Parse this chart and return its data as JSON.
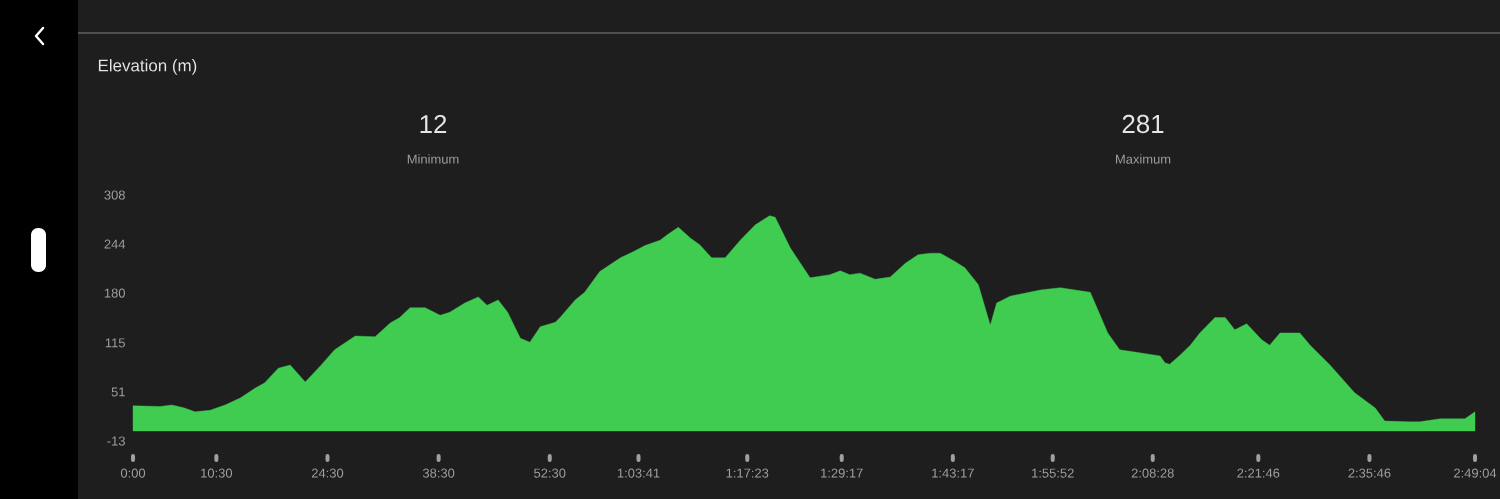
{
  "chart_data": {
    "type": "area",
    "title": "Elevation (m)",
    "annotations": [
      "12",
      "Minimum",
      "281",
      "Maximum"
    ],
    "x": [
      0,
      3.4,
      4.9,
      6.5,
      7.8,
      9.7,
      11.6,
      13.5,
      15.4,
      16.6,
      18.3,
      19.8,
      21.7,
      23.6,
      25.4,
      28.0,
      30.5,
      32.4,
      33.6,
      34.9,
      36.8,
      38.7,
      39.9,
      41.8,
      43.5,
      44.6,
      46.0,
      47.2,
      48.8,
      50.0,
      51.3,
      53.2,
      53.8,
      55.7,
      56.9,
      58.8,
      61.4,
      63.2,
      64.5,
      66.4,
      67.3,
      68.7,
      70.2,
      71.4,
      72.9,
      74.6,
      76.5,
      78.4,
      80.2,
      80.9,
      82.8,
      85.3,
      87.8,
      89.1,
      90.3,
      91.6,
      93.5,
      95.4,
      97.3,
      98.9,
      100.4,
      101.7,
      103.6,
      104.8,
      106.5,
      108.0,
      108.8,
      110.5,
      114.3,
      116.8,
      120.6,
      122.8,
      124.3,
      126.2,
      129.4,
      130.0,
      130.6,
      131.9,
      133.2,
      134.4,
      136.3,
      137.6,
      138.8,
      140.3,
      142.2,
      143.2,
      144.5,
      147.0,
      148.3,
      150.8,
      153.9,
      156.5,
      157.7,
      160.9,
      162.1,
      164.7,
      167.8,
      169.067
    ],
    "values": [
      33,
      32,
      34,
      30,
      25,
      27,
      34,
      43,
      56,
      63,
      82,
      86,
      64,
      85,
      106,
      124,
      123,
      141,
      148,
      161,
      161,
      151,
      155,
      167,
      175,
      164,
      171,
      155,
      121,
      116,
      136,
      142,
      148,
      171,
      181,
      208,
      226,
      235,
      242,
      249,
      256,
      266,
      252,
      243,
      226,
      226,
      249,
      269,
      281,
      279,
      239,
      200,
      204,
      209,
      204,
      206,
      198,
      201,
      219,
      230,
      232,
      232,
      221,
      213,
      191,
      138,
      167,
      176,
      184,
      187,
      181,
      128,
      106,
      103,
      98,
      89,
      87,
      99,
      112,
      128,
      148,
      148,
      132,
      140,
      119,
      112,
      128,
      128,
      112,
      86,
      50,
      30,
      13,
      12,
      12,
      16,
      16,
      25
    ],
    "color": "#3fcc50",
    "xlim": [
      0,
      169.067
    ],
    "xticks": [
      {
        "value": 0,
        "label": "0:00"
      },
      {
        "value": 10.5,
        "label": "10:30"
      },
      {
        "value": 24.5,
        "label": "24:30"
      },
      {
        "value": 38.5,
        "label": "38:30"
      },
      {
        "value": 52.5,
        "label": "52:30"
      },
      {
        "value": 63.683,
        "label": "1:03:41"
      },
      {
        "value": 77.383,
        "label": "1:17:23"
      },
      {
        "value": 89.283,
        "label": "1:29:17"
      },
      {
        "value": 103.283,
        "label": "1:43:17"
      },
      {
        "value": 115.867,
        "label": "1:55:52"
      },
      {
        "value": 128.467,
        "label": "2:08:28"
      },
      {
        "value": 141.767,
        "label": "2:21:46"
      },
      {
        "value": 155.767,
        "label": "2:35:46"
      },
      {
        "value": 169.067,
        "label": "2:49:04"
      }
    ],
    "ylim": [
      -13,
      308
    ],
    "yticks": [
      -13,
      51,
      115,
      180,
      244,
      308
    ]
  }
}
